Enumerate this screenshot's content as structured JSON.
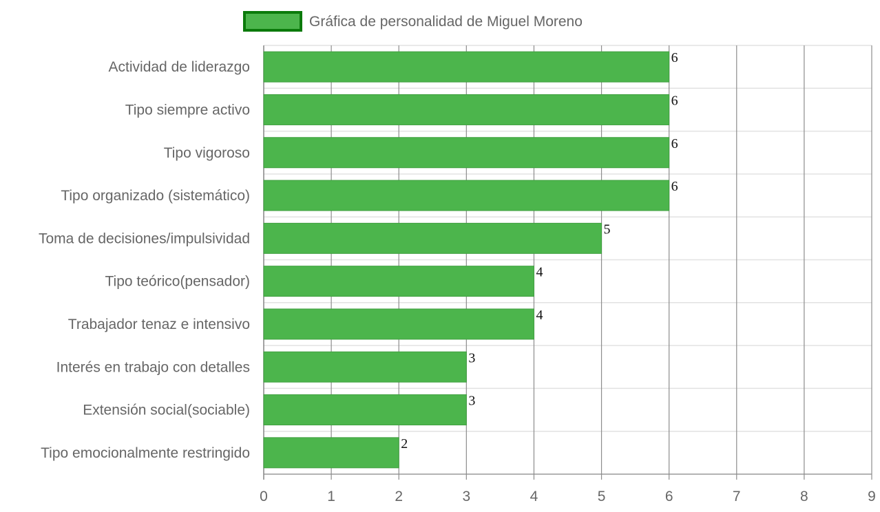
{
  "chart_data": {
    "type": "bar",
    "orientation": "horizontal",
    "title": "",
    "legend": {
      "position": "top",
      "label": "Gráfica de personalidad de Miguel Moreno"
    },
    "categories": [
      "Actividad de liderazgo",
      "Tipo siempre activo",
      "Tipo vigoroso",
      "Tipo organizado (sistemático)",
      "Toma de decisiones/impulsividad",
      "Tipo teórico(pensador)",
      "Trabajador tenaz e intensivo",
      "Interés en trabajo con detalles",
      "Extensión social(sociable)",
      "Tipo emocionalmente restringido"
    ],
    "series": [
      {
        "name": "Gráfica de personalidad de Miguel Moreno",
        "values": [
          6,
          6,
          6,
          6,
          5,
          4,
          4,
          3,
          3,
          2
        ]
      }
    ],
    "xlim": [
      0,
      9
    ],
    "xticks": [
      "0",
      "1",
      "2",
      "3",
      "4",
      "5",
      "6",
      "7",
      "8",
      "9"
    ],
    "xlabel": "",
    "ylabel": "",
    "grid": true,
    "data_labels": true
  },
  "colors": {
    "bar_fill": "#4cb54c",
    "legend_border": "#0b7a0b",
    "text": "#666666",
    "vertical_grid": "#8c8c8c",
    "horizontal_grid": "#e2e2e2"
  }
}
